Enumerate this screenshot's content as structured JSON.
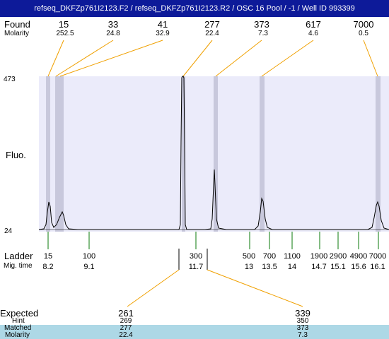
{
  "window": {
    "title": "refseq_DKFZp761I2123.F2 / refseq_DKFZp761I2123.R2 / OSC 16 Pool / -1 / Well ID 993399"
  },
  "labels": {
    "found": "Found",
    "molarity": "Molarity",
    "fluo": "Fluo.",
    "ladder": "Ladder",
    "mig_time": "Mig. time",
    "expected": "Expected",
    "hint": "Hint",
    "matched": "Matched",
    "molarity_bottom": "Molarity"
  },
  "y_axis": {
    "top": "473",
    "bottom": "24"
  },
  "found_peaks": [
    {
      "size": "15",
      "molarity": "252.5"
    },
    {
      "size": "33",
      "molarity": "24.8"
    },
    {
      "size": "41",
      "molarity": "32.9"
    },
    {
      "size": "277",
      "molarity": "22.4"
    },
    {
      "size": "373",
      "molarity": "7.3"
    },
    {
      "size": "617",
      "molarity": "4.6"
    },
    {
      "size": "7000",
      "molarity": "0.5"
    }
  ],
  "ladder": [
    {
      "size": "15",
      "time": "8.2"
    },
    {
      "size": "100",
      "time": "9.1"
    },
    {
      "size": "300",
      "time": "11.7"
    },
    {
      "size": "500",
      "time": "13"
    },
    {
      "size": "700",
      "time": "13.5"
    },
    {
      "size": "1100",
      "time": "14"
    },
    {
      "size": "1900",
      "time": "14.7"
    },
    {
      "size": "2900",
      "time": "15.1"
    },
    {
      "size": "4900",
      "time": "15.6"
    },
    {
      "size": "7000",
      "time": "16.1"
    }
  ],
  "expected": [
    {
      "size": "261",
      "hint": "269",
      "matched": "277",
      "molarity": "22.4"
    },
    {
      "size": "339",
      "hint": "350",
      "matched": "373",
      "molarity": "7.3"
    }
  ],
  "colors": {
    "title_bg": "#0d1a99",
    "plot_bg": "#ebebfa",
    "band": "#c8c8dc",
    "connector": "#f0a000",
    "ladder_tick": "#0a7a0a",
    "matched_bg": "#add8e6"
  }
}
